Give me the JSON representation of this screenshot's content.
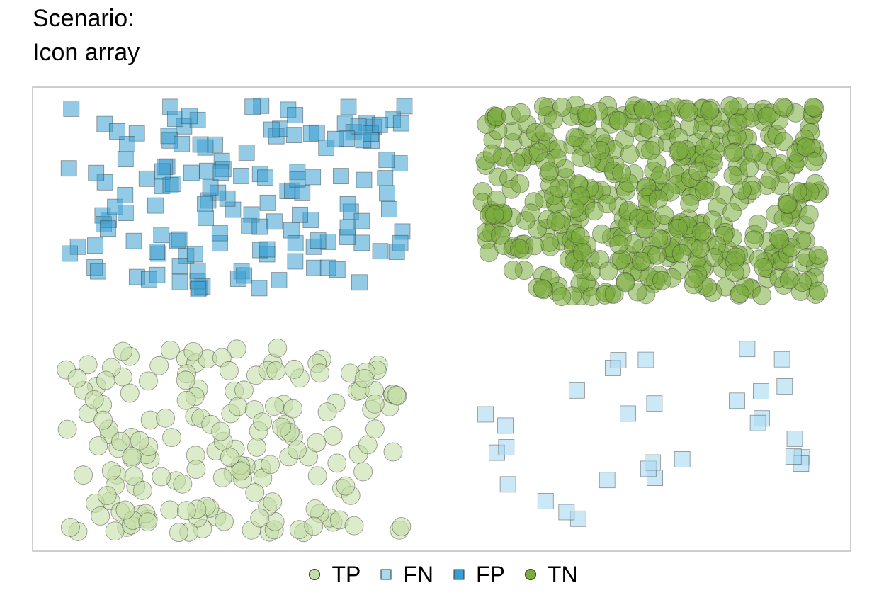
{
  "title_line1": "Scenario:",
  "title_line2": "Icon array",
  "chart_data": {
    "type": "scatter",
    "title": "Scenario:\nIcon array",
    "grid": false,
    "legend_position": "bottom",
    "panels_description": "icon array split into four quadrants",
    "series": [
      {
        "name": "FP",
        "shape": "square",
        "color": "#3a9fcf",
        "quadrant": "top-left",
        "count": 150
      },
      {
        "name": "TN",
        "shape": "circle",
        "color": "#7aab3d",
        "quadrant": "top-right",
        "count": 500
      },
      {
        "name": "TP",
        "shape": "circle",
        "color": "#c4dea6",
        "quadrant": "bottom-left",
        "count": 180
      },
      {
        "name": "FN",
        "shape": "square",
        "color": "#a9d9f1",
        "quadrant": "bottom-right",
        "count": 30
      }
    ]
  },
  "legend": [
    {
      "label": "TP",
      "shape": "circle",
      "fill": "#c4dea6",
      "stroke": "#333333"
    },
    {
      "label": "FN",
      "shape": "square",
      "fill": "#a9d9f1",
      "stroke": "#333333"
    },
    {
      "label": "FP",
      "shape": "square",
      "fill": "#3a9fcf",
      "stroke": "#333333"
    },
    {
      "label": "TN",
      "shape": "circle",
      "fill": "#7aab3d",
      "stroke": "#333333"
    }
  ]
}
